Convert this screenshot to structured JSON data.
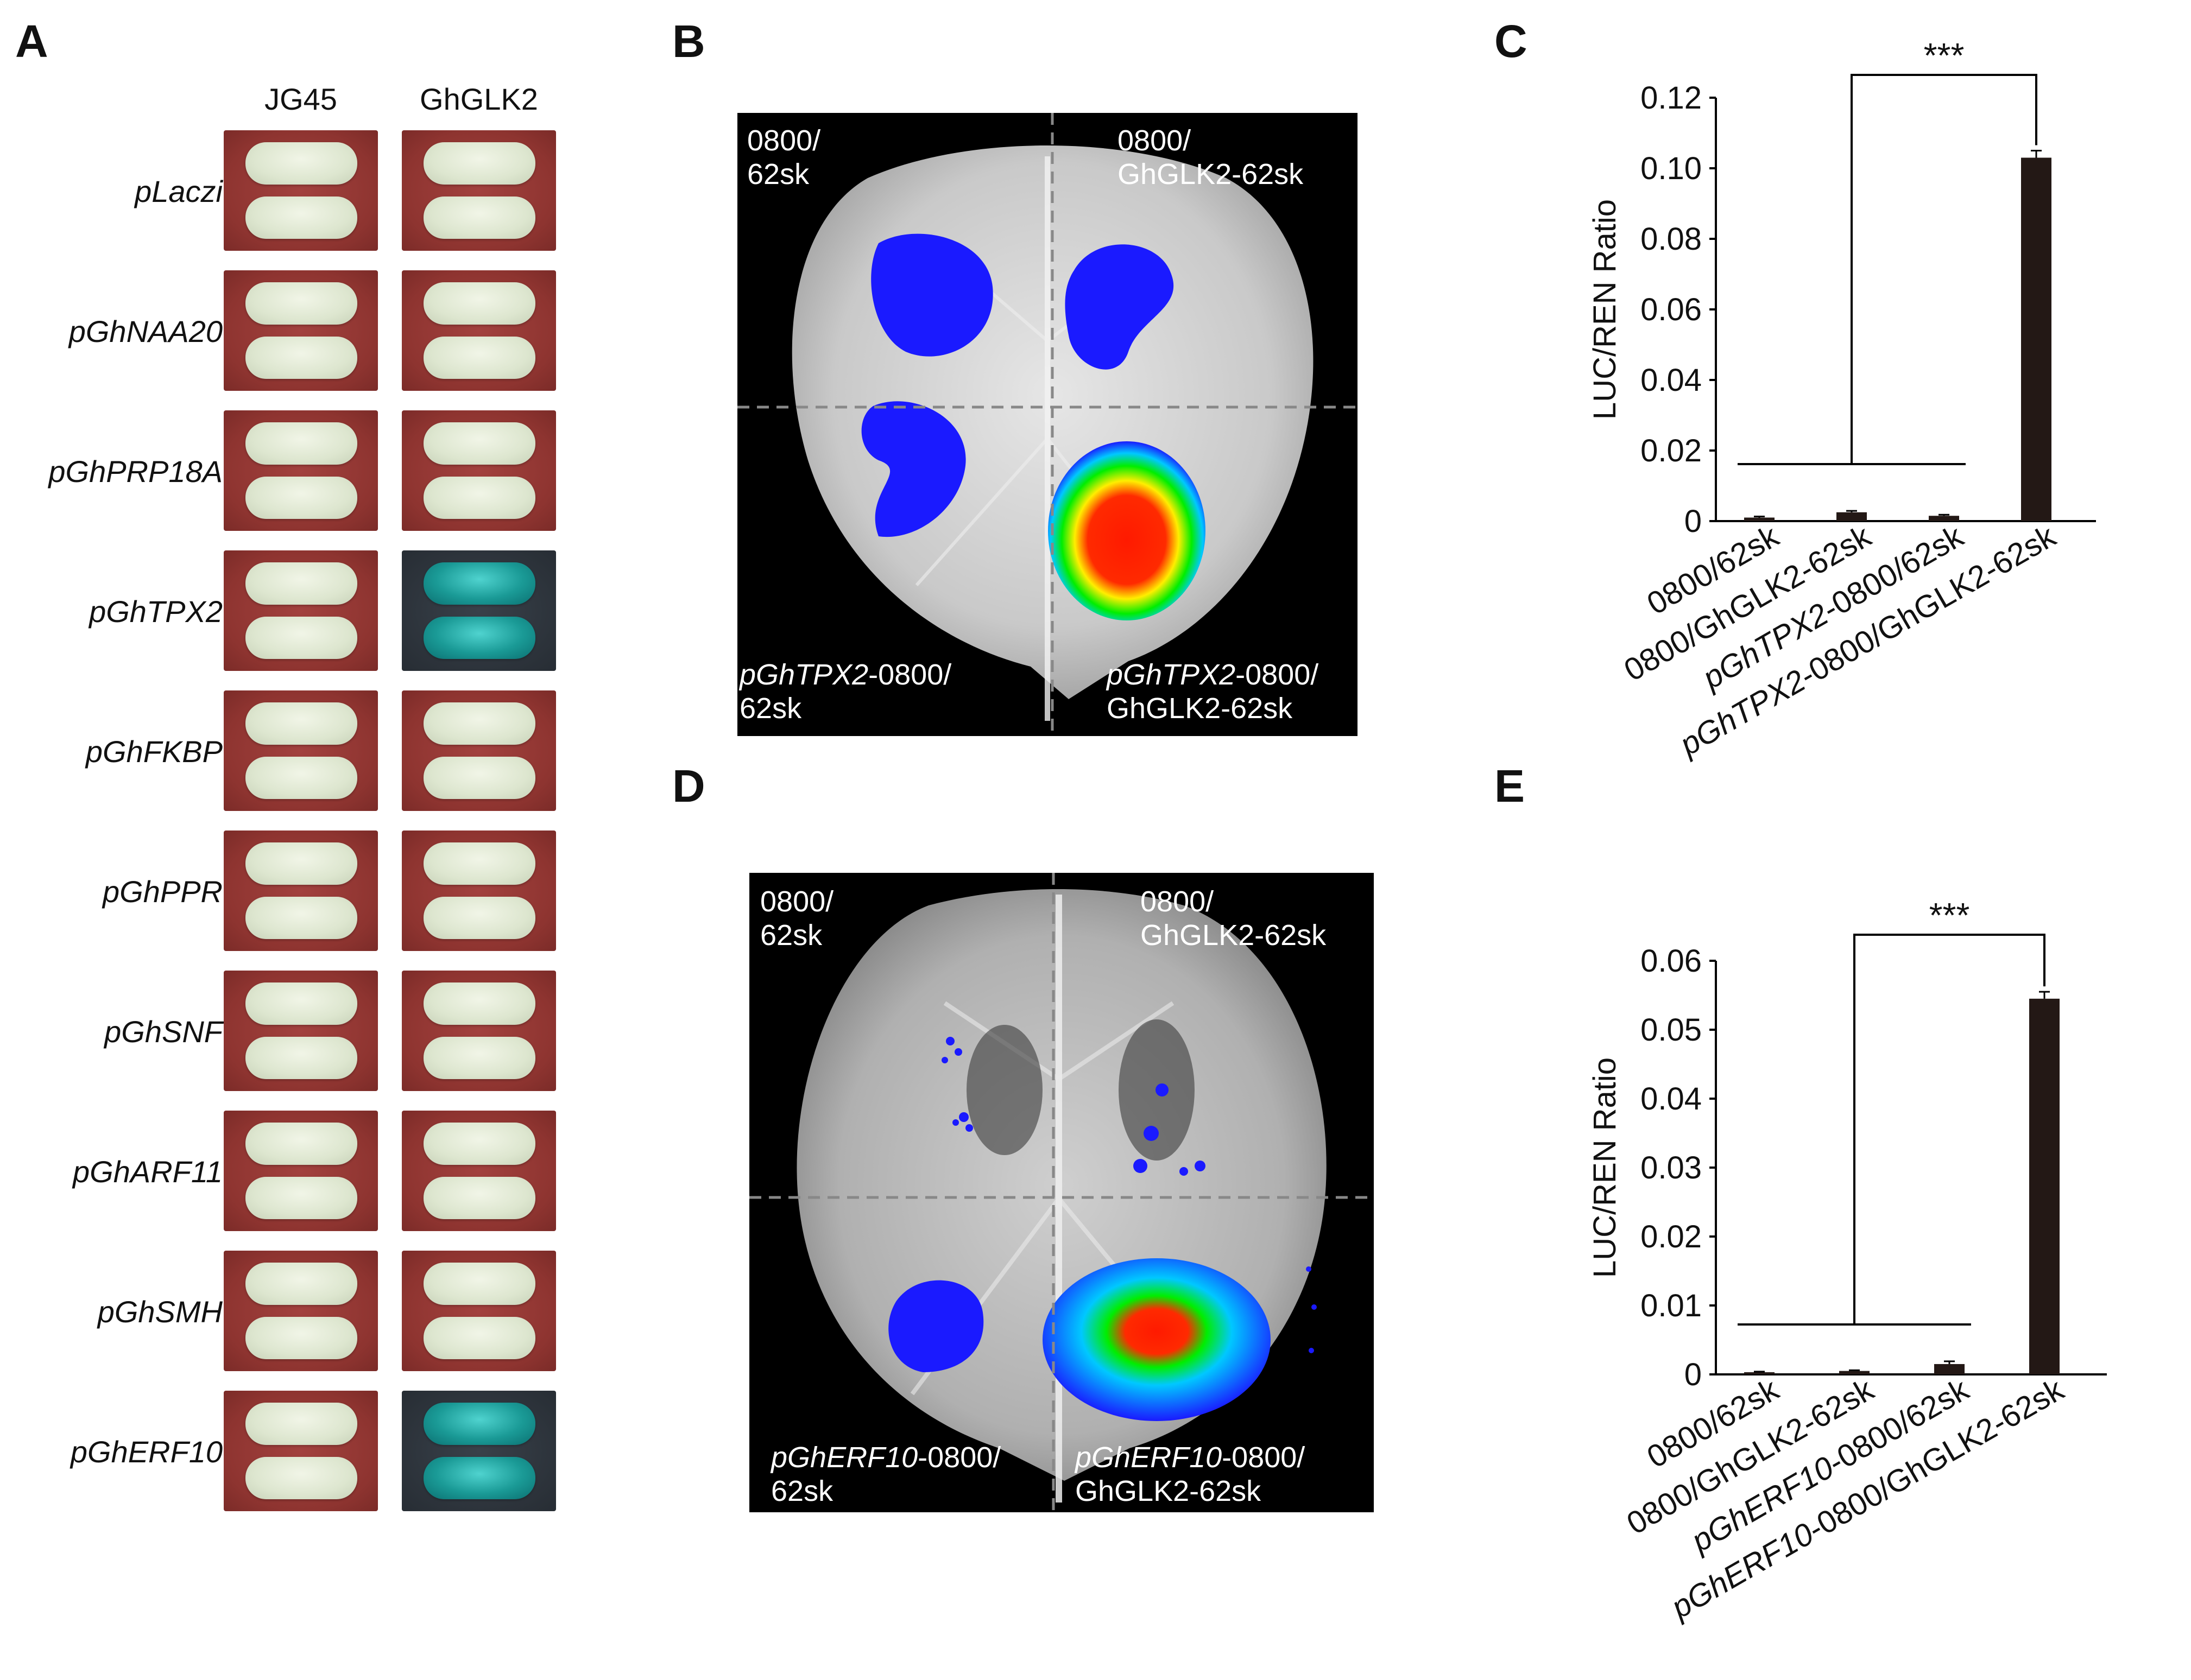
{
  "panel_labels": {
    "a": "A",
    "b": "B",
    "c": "C",
    "d": "D",
    "e": "E"
  },
  "panel_a": {
    "columns": [
      "JG45",
      "GhGLK2"
    ],
    "rows": [
      {
        "label": "pLaczi",
        "jg45_color": "white",
        "glk2_color": "white"
      },
      {
        "label": "pGhNAA20",
        "jg45_color": "white",
        "glk2_color": "white"
      },
      {
        "label": "pGhPRP18A",
        "jg45_color": "white",
        "glk2_color": "white"
      },
      {
        "label": "pGhTPX2",
        "jg45_color": "white",
        "glk2_color": "blue"
      },
      {
        "label": "pGhFKBP",
        "jg45_color": "white",
        "glk2_color": "white"
      },
      {
        "label": "pGhPPR",
        "jg45_color": "white",
        "glk2_color": "white"
      },
      {
        "label": "pGhSNF",
        "jg45_color": "white",
        "glk2_color": "white"
      },
      {
        "label": "pGhARF11",
        "jg45_color": "white",
        "glk2_color": "white"
      },
      {
        "label": "pGhSMH",
        "jg45_color": "white",
        "glk2_color": "white"
      },
      {
        "label": "pGhERF10",
        "jg45_color": "white",
        "glk2_color": "blue"
      }
    ]
  },
  "panel_b": {
    "tl": [
      "0800/",
      "62sk"
    ],
    "tr": [
      "0800/",
      "GhGLK2-62sk"
    ],
    "bl_italic": "pGhTPX2",
    "bl_rest": "-0800/",
    "bl_line2": "62sk",
    "br_italic": "pGhTPX2",
    "br_rest": "-0800/",
    "br_line2": "GhGLK2-62sk"
  },
  "panel_d": {
    "tl": [
      "0800/",
      "62sk"
    ],
    "tr": [
      "0800/",
      "GhGLK2-62sk"
    ],
    "bl_italic": "pGhERF10",
    "bl_rest": "-0800/",
    "bl_line2": "62sk",
    "br_italic": "pGhERF10",
    "br_rest": "-0800/",
    "br_line2": "GhGLK2-62sk"
  },
  "chart_data": [
    {
      "type": "bar",
      "panel": "C",
      "ylabel": "LUC/REN Ratio",
      "categories": [
        {
          "italic": "",
          "text": "0800/62sk"
        },
        {
          "italic": "",
          "text": "0800/GhGLK2-62sk"
        },
        {
          "italic": "pGhTPX2",
          "text": "-0800/62sk"
        },
        {
          "italic": "pGhTPX2",
          "text": "-0800/GhGLK2-62sk"
        }
      ],
      "values": [
        0.001,
        0.0025,
        0.0015,
        0.103
      ],
      "errors": [
        0.0003,
        0.0004,
        0.0003,
        0.002
      ],
      "ylim": [
        0,
        0.12
      ],
      "yticks": [
        "0",
        "0.02",
        "0.04",
        "0.06",
        "0.08",
        "0.10",
        "0.12"
      ],
      "significance": "***",
      "bar_color": "#231815"
    },
    {
      "type": "bar",
      "panel": "E",
      "ylabel": "LUC/REN Ratio",
      "categories": [
        {
          "italic": "",
          "text": "0800/62sk"
        },
        {
          "italic": "",
          "text": "0800/GhGLK2-62sk"
        },
        {
          "italic": "pGhERF10",
          "text": "-0800/62sk"
        },
        {
          "italic": "pGhERF10",
          "text": "-0800/GhGLK2-62sk"
        }
      ],
      "values": [
        0.0003,
        0.0005,
        0.0015,
        0.0545
      ],
      "errors": [
        0.0001,
        0.0001,
        0.0004,
        0.001
      ],
      "ylim": [
        0,
        0.06
      ],
      "yticks": [
        "0",
        "0.01",
        "0.02",
        "0.03",
        "0.04",
        "0.05",
        "0.06"
      ],
      "significance": "***",
      "bar_color": "#231815"
    }
  ]
}
